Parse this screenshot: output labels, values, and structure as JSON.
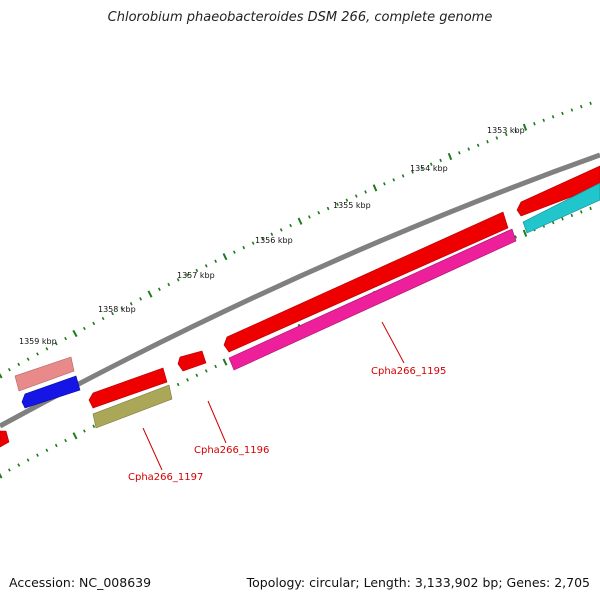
{
  "title": "Chlorobium phaeobacteroides DSM 266, complete genome",
  "footer": {
    "accession": "Accession: NC_008639",
    "summary": "Topology: circular; Length: 3,133,902 bp; Genes: 2,705"
  },
  "scale": {
    "labels": [
      "1353 kbp",
      "1354 kbp",
      "1355 kbp",
      "1356 kbp",
      "1357 kbp",
      "1358 kbp",
      "1359 kbp"
    ]
  },
  "gene_labels": [
    "Cpha266_1195",
    "Cpha266_1196",
    "Cpha266_1197"
  ],
  "colors": {
    "backbone": "#808080",
    "red": "#ee0000",
    "magenta": "#ee1f9a",
    "cyan": "#20c6cc",
    "pink": "#e88a8a",
    "blue": "#1515e6",
    "olive": "#aaa858",
    "tick": "#1e7a1e",
    "label": "#d40000"
  }
}
